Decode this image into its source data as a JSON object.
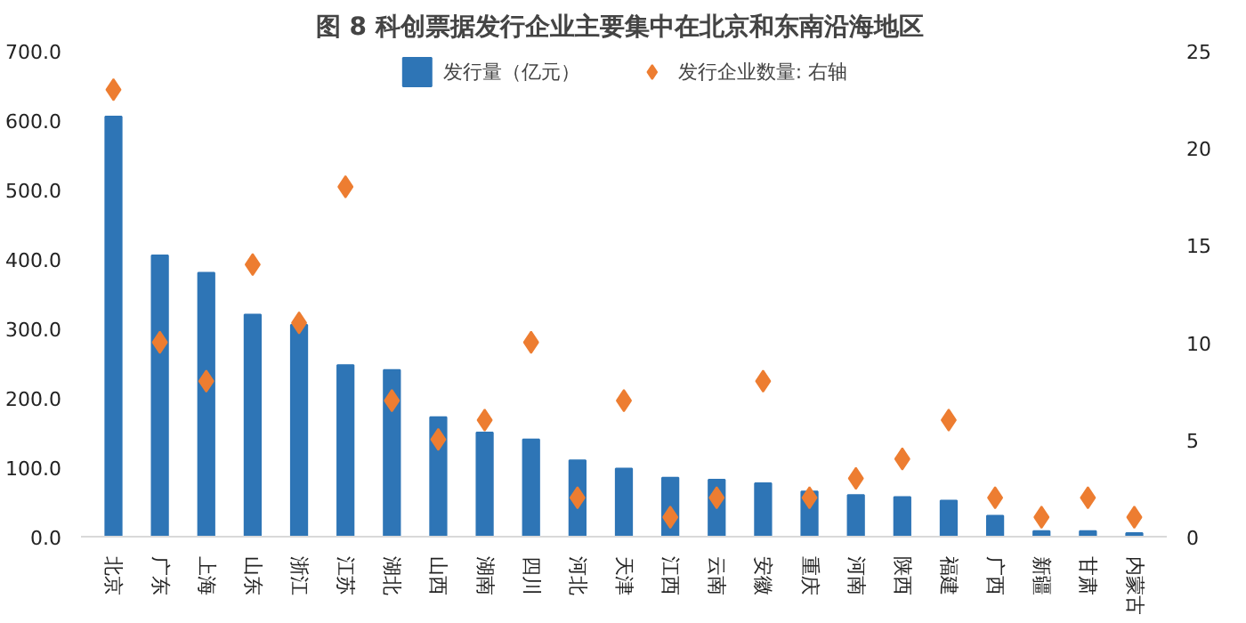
{
  "chart_data": {
    "type": "bar",
    "title": "图 8  科创票据发行企业主要集中在北京和东南沿海地区",
    "categories": [
      "北京",
      "广东",
      "上海",
      "山东",
      "浙江",
      "江苏",
      "湖北",
      "山西",
      "湖南",
      "四川",
      "河北",
      "天津",
      "江西",
      "云南",
      "安徽",
      "重庆",
      "河南",
      "陕西",
      "福建",
      "广西",
      "新疆",
      "甘肃",
      "内蒙古"
    ],
    "series": [
      {
        "name": "发行量（亿元）",
        "color": "#2e75b6",
        "values": [
          605,
          405,
          380,
          320,
          305,
          247,
          240,
          172,
          150,
          140,
          110,
          98,
          85,
          82,
          77,
          65,
          60,
          57,
          52,
          30,
          8,
          8,
          5
        ]
      },
      {
        "name": "发行企业数量: 右轴",
        "type": "scatter",
        "axis": "y2",
        "marker": "diamond",
        "color": "#ed7d31",
        "values": [
          23,
          10,
          8,
          14,
          11,
          18,
          7,
          5,
          6,
          10,
          2,
          7,
          1,
          2,
          8,
          2,
          3,
          4,
          6,
          2,
          1,
          2,
          1
        ]
      }
    ],
    "ylim": [
      0,
      700
    ],
    "yticks": [
      {
        "value": 0,
        "label": "0.0"
      },
      {
        "value": 100,
        "label": "100.0"
      },
      {
        "value": 200,
        "label": "200.0"
      },
      {
        "value": 300,
        "label": "300.0"
      },
      {
        "value": 400,
        "label": "400.0"
      },
      {
        "value": 500,
        "label": "500.0"
      },
      {
        "value": 600,
        "label": "600.0"
      },
      {
        "value": 700,
        "label": "700.0"
      }
    ],
    "y2lim": [
      0,
      25
    ],
    "y2ticks": [
      0,
      5,
      10,
      15,
      20,
      25
    ],
    "grid": false,
    "legend": "top"
  }
}
